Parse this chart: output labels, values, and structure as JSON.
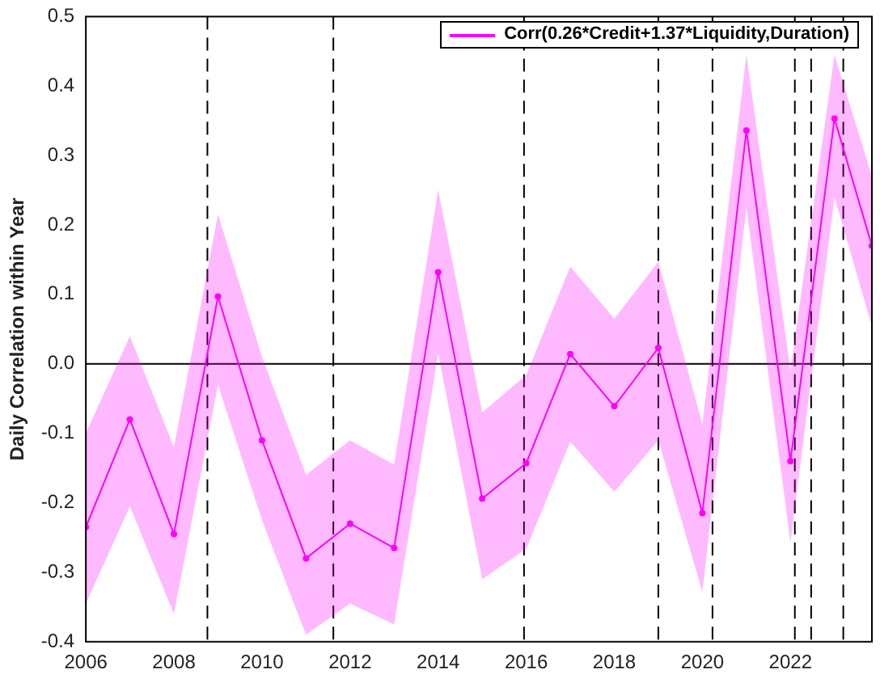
{
  "chart_data": {
    "type": "line",
    "ylabel": "Daily Correlation within Year",
    "x": [
      2006,
      2007,
      2008,
      2009,
      2010,
      2011,
      2012,
      2013,
      2014,
      2015,
      2016,
      2017,
      2018,
      2019,
      2020,
      2021,
      2022,
      2023,
      2023.85
    ],
    "series": [
      {
        "name": "Corr(0.26*Credit+1.37*Liquidity,Duration)",
        "color": "#ff00ff",
        "values": [
          -0.235,
          -0.08,
          -0.245,
          0.097,
          -0.11,
          -0.28,
          -0.23,
          -0.265,
          0.132,
          -0.194,
          -0.143,
          0.014,
          -0.061,
          0.023,
          -0.215,
          0.336,
          -0.14,
          0.353,
          0.17
        ],
        "lower": [
          -0.345,
          -0.205,
          -0.36,
          -0.03,
          -0.225,
          -0.39,
          -0.345,
          -0.375,
          0.015,
          -0.31,
          -0.266,
          -0.112,
          -0.184,
          -0.11,
          -0.328,
          0.225,
          -0.257,
          0.24,
          0.054
        ],
        "upper": [
          -0.1,
          0.04,
          -0.12,
          0.215,
          0.01,
          -0.16,
          -0.11,
          -0.145,
          0.25,
          -0.07,
          -0.016,
          0.14,
          0.065,
          0.147,
          -0.087,
          0.445,
          -0.01,
          0.445,
          0.27
        ]
      }
    ],
    "xlim": [
      2006,
      2023.85
    ],
    "xticks": [
      2006,
      2008,
      2010,
      2012,
      2014,
      2016,
      2018,
      2020,
      2022
    ],
    "ylim": [
      -0.4,
      0.5
    ],
    "yticks": [
      {
        "value": -0.4,
        "label": "-0.4"
      },
      {
        "value": -0.3,
        "label": "-0.3"
      },
      {
        "value": -0.2,
        "label": "-0.2"
      },
      {
        "value": -0.1,
        "label": "-0.1"
      },
      {
        "value": 0,
        "label": "0.0"
      },
      {
        "value": 0.1,
        "label": "0.1"
      },
      {
        "value": 0.2,
        "label": "0.2"
      },
      {
        "value": 0.3,
        "label": "0.3"
      },
      {
        "value": 0.4,
        "label": "0.4"
      },
      {
        "value": 0.5,
        "label": "0.5"
      }
    ],
    "ref_lines": [
      {
        "axis": "y",
        "value": 0,
        "color": "#000000",
        "line_style": "solid"
      },
      {
        "axis": "x",
        "value": 2008.76,
        "color": "#000000",
        "line_style": "dashed"
      },
      {
        "axis": "x",
        "value": 2011.62,
        "color": "#000000",
        "line_style": "dashed"
      },
      {
        "axis": "x",
        "value": 2015.95,
        "color": "#000000",
        "line_style": "dashed"
      },
      {
        "axis": "x",
        "value": 2019.0,
        "color": "#000000",
        "line_style": "dashed"
      },
      {
        "axis": "x",
        "value": 2020.23,
        "color": "#000000",
        "line_style": "dashed"
      },
      {
        "axis": "x",
        "value": 2022.1,
        "color": "#000000",
        "line_style": "dashed"
      },
      {
        "axis": "x",
        "value": 2022.47,
        "color": "#000000",
        "line_style": "dashed"
      },
      {
        "axis": "x",
        "value": 2023.2,
        "color": "#000000",
        "line_style": "dashed"
      }
    ],
    "grid": false,
    "legend": "top right",
    "marker": "circle",
    "line_style": "solid"
  }
}
